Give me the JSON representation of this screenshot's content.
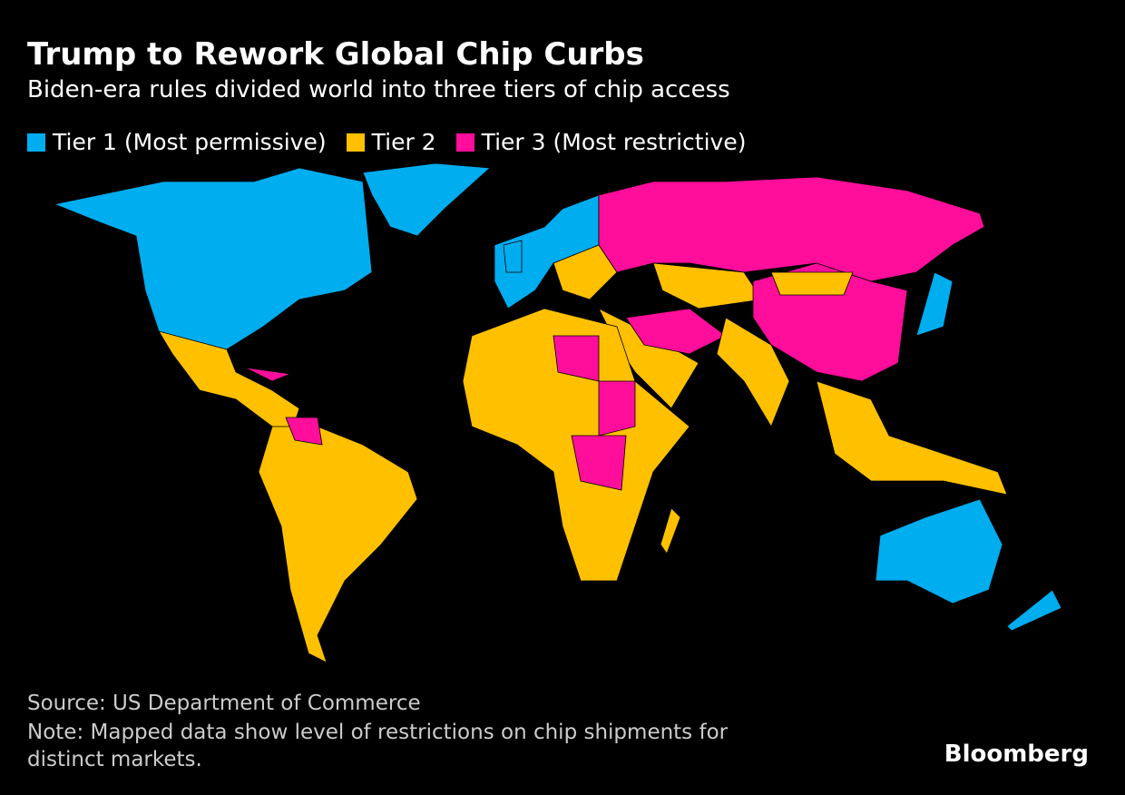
{
  "header": {
    "title": "Trump to Rework Global Chip Curbs",
    "subtitle": "Biden-era rules divided world into three tiers of chip access"
  },
  "legend": [
    {
      "label": "Tier 1 (Most permissive)",
      "color": "#00adef"
    },
    {
      "label": "Tier 2",
      "color": "#ffc000"
    },
    {
      "label": "Tier 3 (Most restrictive)",
      "color": "#ff0d9b"
    }
  ],
  "footer": {
    "source": "Source: US Department of Commerce",
    "note": "Note: Mapped data show level of restrictions on chip shipments for distinct markets.",
    "brand": "Bloomberg"
  }
}
